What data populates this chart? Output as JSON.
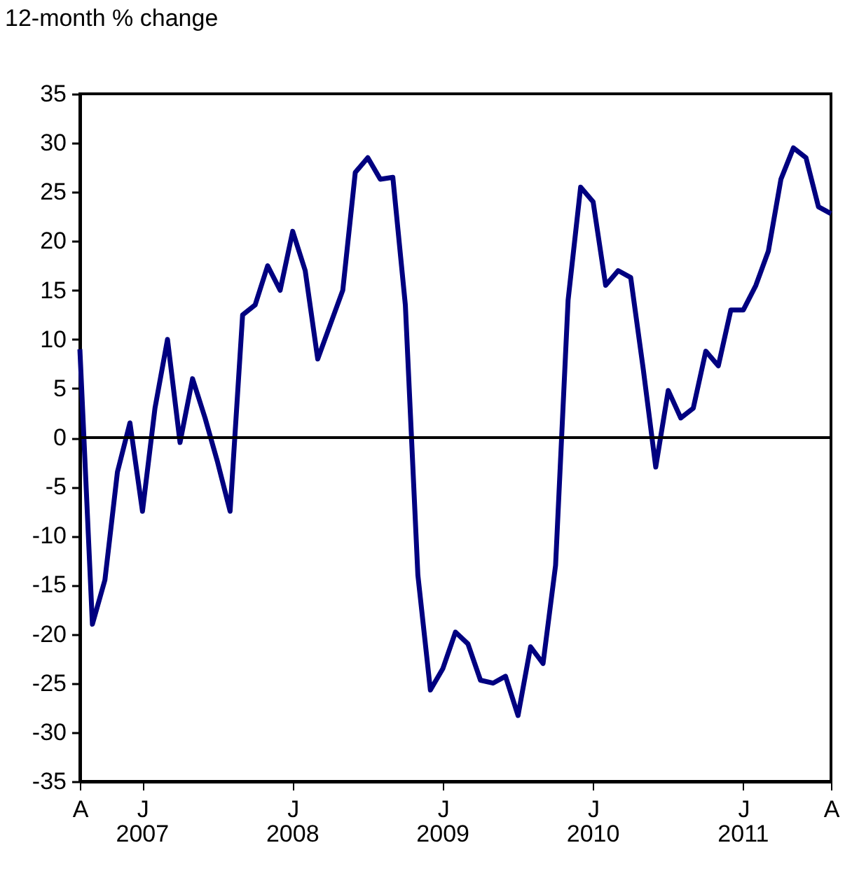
{
  "chart_data": {
    "type": "line",
    "ylabel": "12-month % change",
    "categories": [
      "A",
      null,
      null,
      null,
      null,
      "J",
      null,
      null,
      null,
      null,
      null,
      null,
      null,
      null,
      null,
      null,
      null,
      "J",
      null,
      null,
      null,
      null,
      null,
      null,
      null,
      null,
      null,
      null,
      null,
      "J",
      null,
      null,
      null,
      null,
      null,
      null,
      null,
      null,
      null,
      null,
      null,
      "J",
      null,
      null,
      null,
      null,
      null,
      null,
      null,
      null,
      null,
      null,
      null,
      "J",
      null,
      null,
      null,
      null,
      null,
      null,
      "A"
    ],
    "series": [
      {
        "color": "#000080",
        "values": [
          9,
          -19,
          -14.5,
          -3.5,
          1.5,
          -7.5,
          3,
          10,
          -0.5,
          6,
          2,
          -2.5,
          -7.5,
          12.5,
          13.5,
          17.5,
          15,
          21,
          17,
          8,
          11.5,
          15,
          27,
          28.5,
          26.3,
          26.5,
          13.5,
          -14,
          -25.7,
          -23.5,
          -19.8,
          -21,
          -24.7,
          -25,
          -24.3,
          -28.3,
          -21.3,
          -23,
          -13,
          14,
          25.5,
          24,
          15.5,
          17,
          16.3,
          7,
          -3,
          4.8,
          2,
          3,
          8.8,
          7.3,
          13,
          13,
          15.5,
          19,
          26.3,
          29.5,
          28.5,
          23.5,
          22.8
        ]
      }
    ],
    "annotations": [
      "2007",
      "2008",
      "2009",
      "2010",
      "2011"
    ],
    "ylim": [
      -35,
      35
    ],
    "yticks": [
      -35,
      -30,
      -25,
      -20,
      -15,
      -10,
      -5,
      0,
      5,
      10,
      15,
      20,
      25,
      30,
      35
    ],
    "ref_lines": [
      {
        "axis": "y",
        "value": 0
      }
    ],
    "grid": false,
    "legend": false,
    "marker": "none",
    "line_style": "solid"
  }
}
